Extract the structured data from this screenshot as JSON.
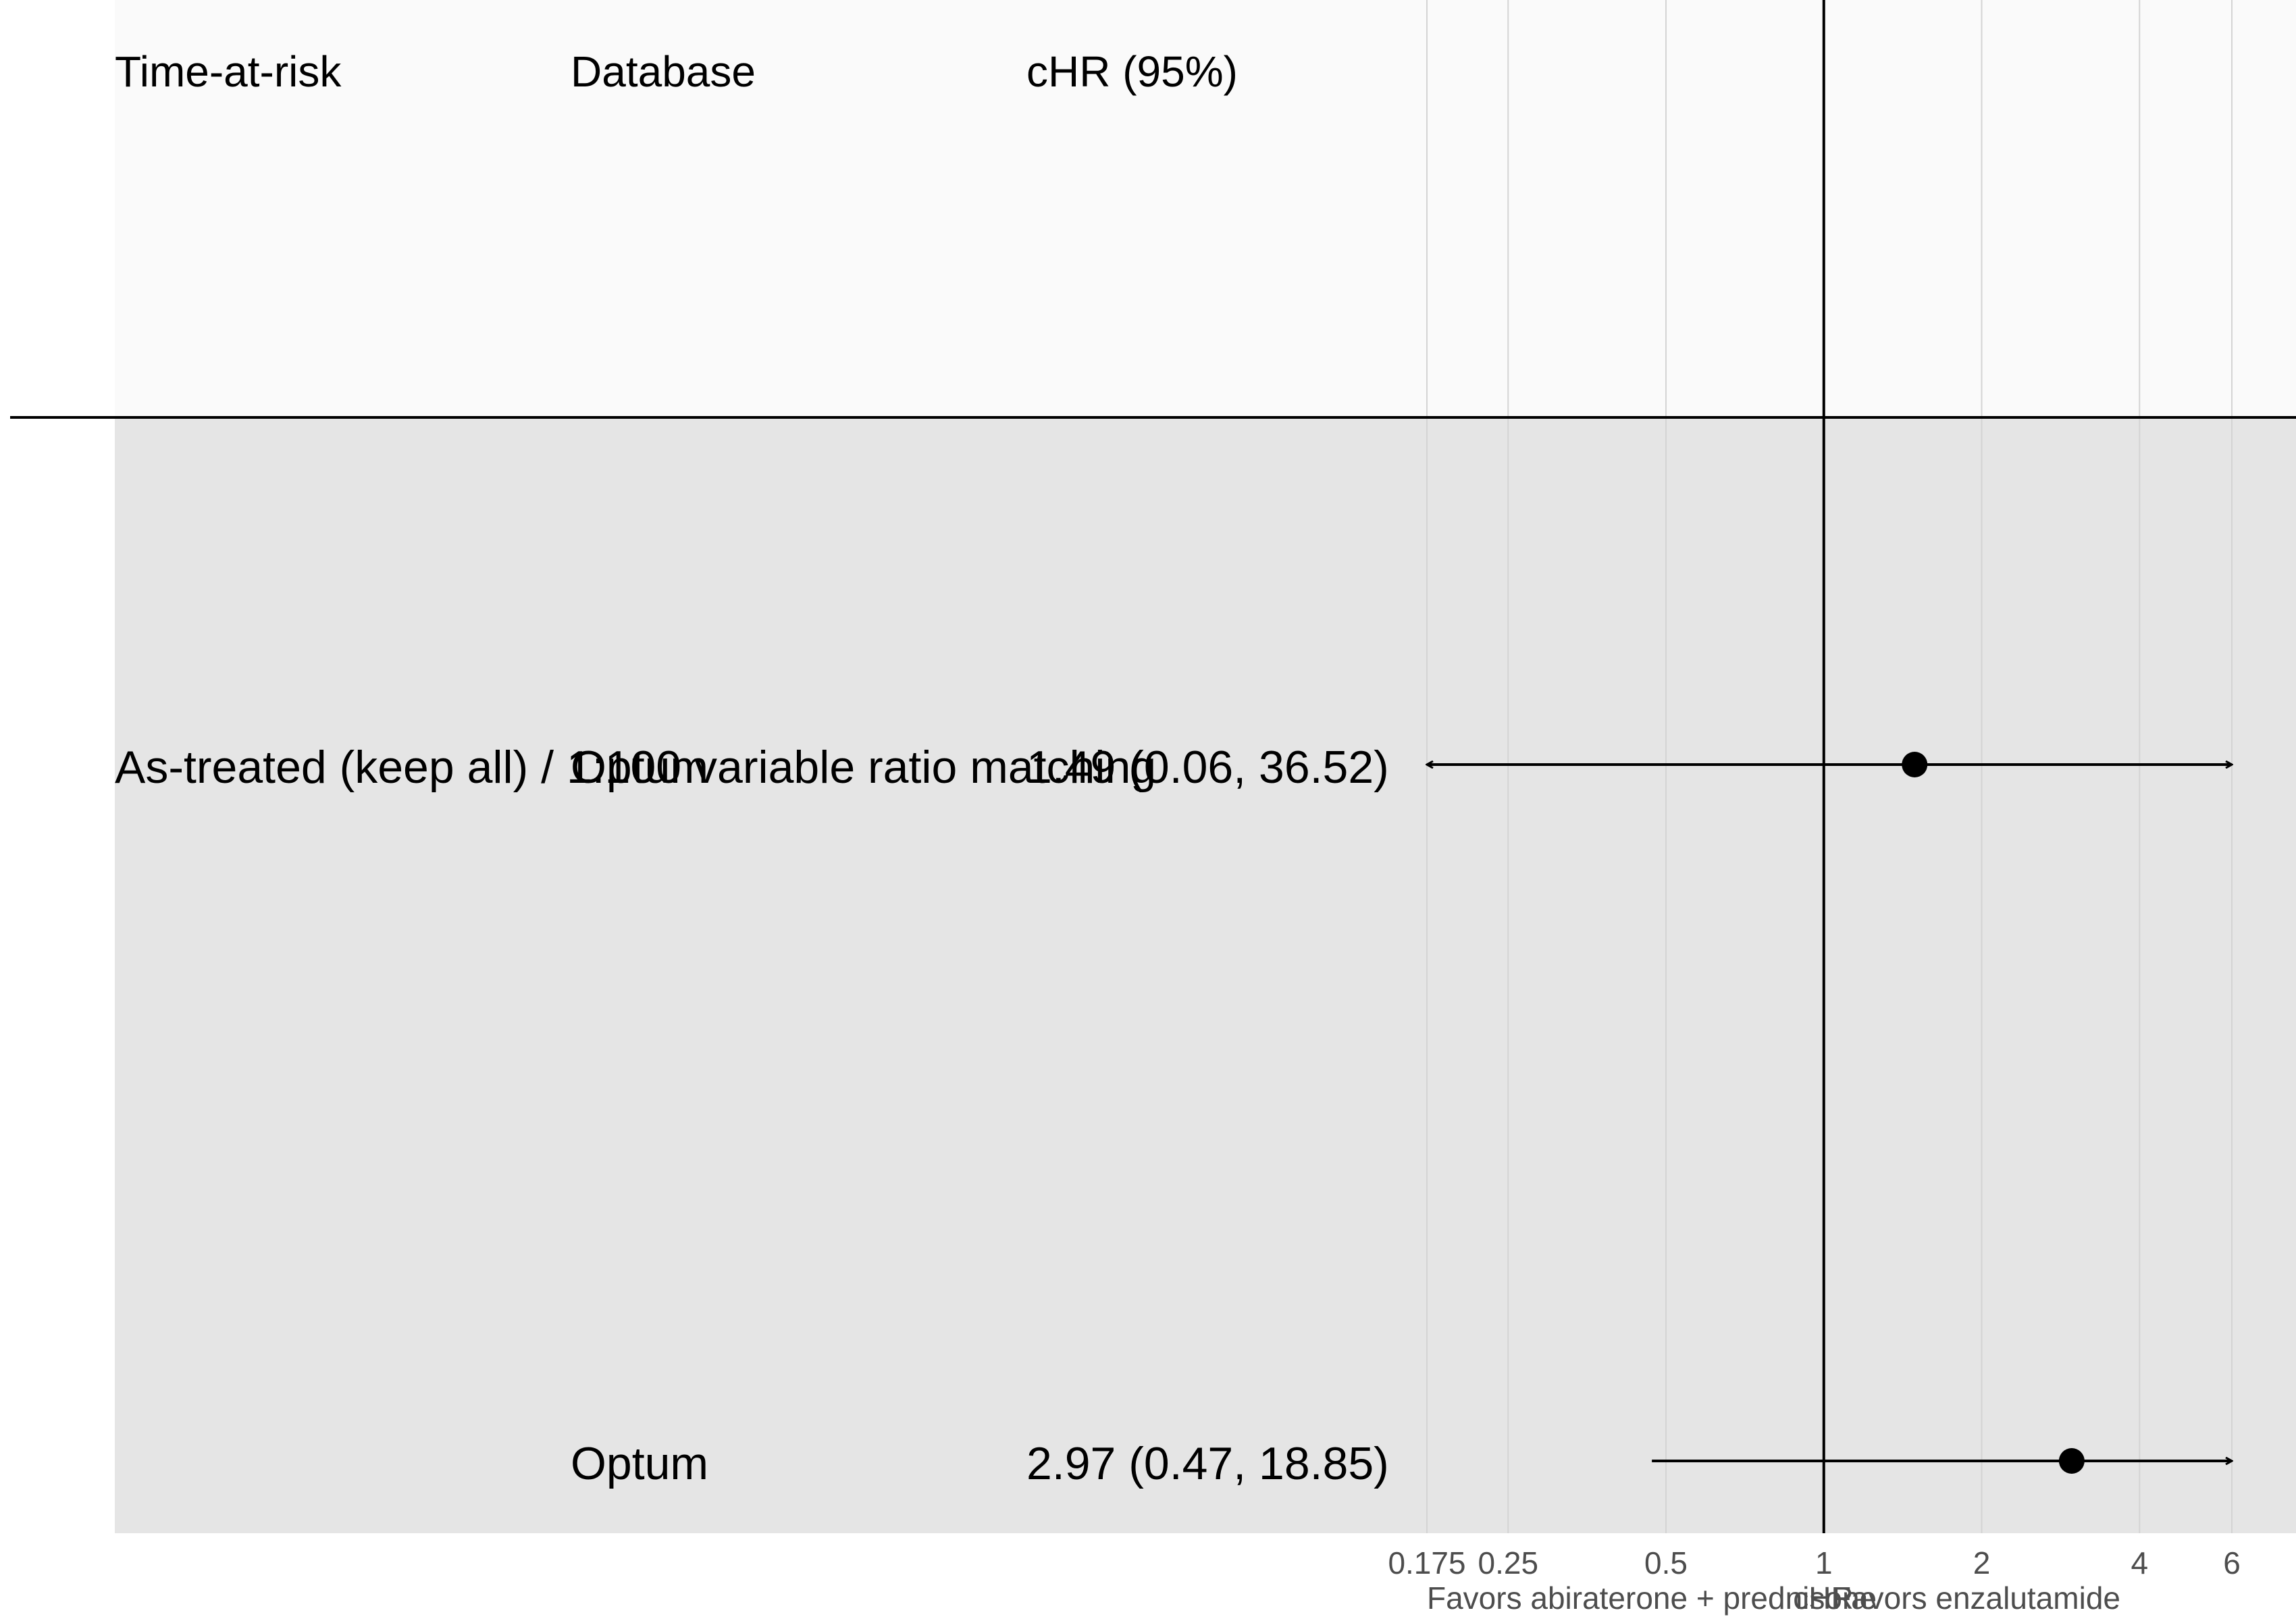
{
  "columns": {
    "time_at_risk": "Time-at-risk",
    "database": "Database",
    "estimate": "cHR (95%)"
  },
  "chart_data": {
    "type": "forest",
    "x_scale": "log",
    "xlim": [
      0.175,
      6
    ],
    "reference_line": 1,
    "x_ticks": [
      "0.175",
      "0.25",
      "0.5",
      "1",
      "2",
      "4",
      "6"
    ],
    "xlabel": "cHR",
    "favors_left": "Favors abiraterone + prednisone",
    "favors_right": "Favors enzalutamide",
    "rows": [
      {
        "time_at_risk": "As-treated (keep all) / 1:100 variable ratio matching",
        "database": "Optum",
        "label": "1.49 (0.06, 36.52)",
        "estimate": 1.49,
        "lower": 0.06,
        "upper": 36.52
      },
      {
        "time_at_risk": "",
        "database": "Optum",
        "label": "2.97 (0.47, 18.85)",
        "estimate": 2.97,
        "lower": 0.47,
        "upper": 18.85
      }
    ]
  },
  "colors": {
    "header_band": "#fafafa",
    "row_band": "#e5e5e5",
    "grid": "#d4d4d4",
    "ink": "#000000",
    "axis_text": "#4d4d4d"
  }
}
